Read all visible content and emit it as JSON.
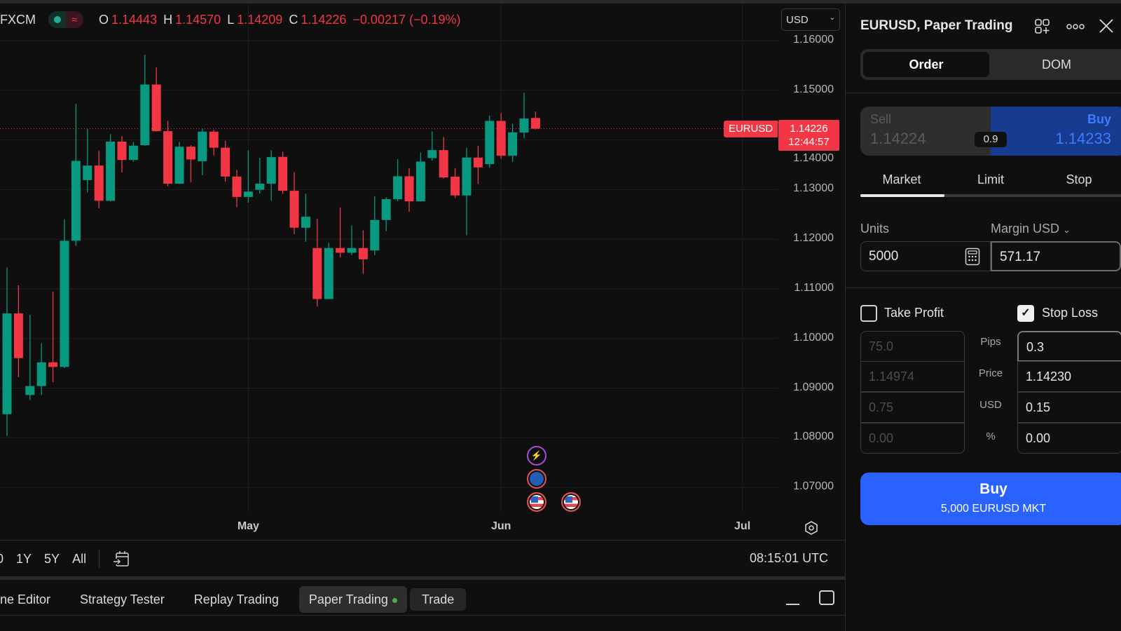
{
  "legend": {
    "symbol": "FXCM",
    "open_label": "O",
    "open": "1.14443",
    "high_label": "H",
    "high": "1.14570",
    "low_label": "L",
    "low": "1.14209",
    "close_label": "C",
    "close": "1.14226",
    "change": "−0.00217 (−0.19%)"
  },
  "currency_select": "USD",
  "price_tag": {
    "symbol": "EURUSD",
    "price": "1.14226",
    "countdown": "12:44:57"
  },
  "colors": {
    "up": "#089981",
    "down": "#f23645",
    "accent": "#2962ff",
    "buy_blue": "#3d7bff"
  },
  "chart_data": {
    "type": "candlestick",
    "ylim": [
      1.065,
      1.168
    ],
    "y_ticks": [
      "1.16000",
      "1.15000",
      "1.14000",
      "1.13000",
      "1.12000",
      "1.11000",
      "1.10000",
      "1.09000",
      "1.08000",
      "1.07000"
    ],
    "x_ticks": [
      {
        "label": "May",
        "at_candle": 21
      },
      {
        "label": "Jun",
        "at_candle": 43
      },
      {
        "label": "Jul",
        "at_candle": 64
      }
    ],
    "last_price": 1.14226,
    "candles": [
      [
        1.08476,
        1.1143,
        1.0804,
        1.10505
      ],
      [
        1.10505,
        1.1107,
        1.09221,
        1.09606
      ],
      [
        1.08862,
        1.10479,
        1.08759,
        1.09042
      ],
      [
        1.09042,
        1.09904,
        1.08862,
        1.09519
      ],
      [
        1.09519,
        1.10942,
        1.09119,
        1.09427
      ],
      [
        1.09427,
        1.12405,
        1.094,
        1.11969
      ],
      [
        1.11969,
        1.14727,
        1.11866,
        1.13577
      ],
      [
        1.13191,
        1.14219,
        1.12945,
        1.13484
      ],
      [
        1.13484,
        1.13777,
        1.12626,
        1.12775
      ],
      [
        1.12775,
        1.14116,
        1.1276,
        1.13967
      ],
      [
        1.13967,
        1.14075,
        1.13345,
        1.13597
      ],
      [
        1.13597,
        1.13957,
        1.13561,
        1.13885
      ],
      [
        1.13895,
        1.15718,
        1.1388,
        1.15117
      ],
      [
        1.15117,
        1.15461,
        1.1417,
        1.14177
      ],
      [
        1.14177,
        1.14383,
        1.13068,
        1.13119
      ],
      [
        1.13119,
        1.13962,
        1.1311,
        1.13864
      ],
      [
        1.13864,
        1.13895,
        1.1315,
        1.13607
      ],
      [
        1.13571,
        1.14229,
        1.13289,
        1.14167
      ],
      [
        1.14167,
        1.14203,
        1.13689,
        1.13844
      ],
      [
        1.13844,
        1.13982,
        1.13161,
        1.13263
      ],
      [
        1.13263,
        1.13397,
        1.12647,
        1.12852
      ],
      [
        1.12852,
        1.13792,
        1.12739,
        1.1296
      ],
      [
        1.12996,
        1.13638,
        1.12919,
        1.13119
      ],
      [
        1.13119,
        1.13792,
        1.1278,
        1.13654
      ],
      [
        1.13659,
        1.13762,
        1.12915,
        1.12976
      ],
      [
        1.12976,
        1.13353,
        1.121,
        1.12232
      ],
      [
        1.12232,
        1.12915,
        1.1195,
        1.12453
      ],
      [
        1.11822,
        1.12411,
        1.10646,
        1.10796
      ],
      [
        1.10796,
        1.11926,
        1.1079,
        1.11822
      ],
      [
        1.11822,
        1.12642,
        1.11634,
        1.11728
      ],
      [
        1.11728,
        1.12279,
        1.11681,
        1.11822
      ],
      [
        1.11822,
        1.12176,
        1.11305,
        1.11596
      ],
      [
        1.11775,
        1.12868,
        1.11681,
        1.12387
      ],
      [
        1.12387,
        1.12844,
        1.12162,
        1.12807
      ],
      [
        1.12807,
        1.13612,
        1.12764,
        1.13268
      ],
      [
        1.13268,
        1.13433,
        1.12548,
        1.12764
      ],
      [
        1.12764,
        1.13748,
        1.1276,
        1.13565
      ],
      [
        1.13635,
        1.14172,
        1.13583,
        1.13795
      ],
      [
        1.13795,
        1.14059,
        1.13221,
        1.13244
      ],
      [
        1.13259,
        1.13433,
        1.1283,
        1.12882
      ],
      [
        1.12882,
        1.13842,
        1.12081,
        1.13645
      ],
      [
        1.13645,
        1.1388,
        1.13113,
        1.13447
      ],
      [
        1.13513,
        1.14492,
        1.13442,
        1.14384
      ],
      [
        1.14384,
        1.14539,
        1.13621,
        1.13682
      ],
      [
        1.13682,
        1.14327,
        1.1356,
        1.14153
      ],
      [
        1.14148,
        1.14949,
        1.14035,
        1.14431
      ],
      [
        1.14443,
        1.1457,
        1.14209,
        1.14226
      ]
    ]
  },
  "toolbar": {
    "ranges": [
      "0",
      "1Y",
      "5Y",
      "All"
    ],
    "time": "08:15:01 UTC"
  },
  "bottom_tabs": [
    "ne Editor",
    "Strategy Tester",
    "Replay Trading",
    "Paper Trading",
    "Trade"
  ],
  "panel": {
    "title": "EURUSD, Paper Trading",
    "seg": {
      "order": "Order",
      "dom": "DOM"
    },
    "sell_label": "Sell",
    "sell_price": "1.14224",
    "buy_label": "Buy",
    "buy_price": "1.14233",
    "spread": "0.9",
    "order_types": [
      "Market",
      "Limit",
      "Stop"
    ],
    "units_label": "Units",
    "margin_label": "Margin USD",
    "units_value": "5000",
    "margin_value": "571.17",
    "take_profit": {
      "label": "Take Profit",
      "checked": false,
      "values": [
        "75.0",
        "1.14974",
        "0.75",
        "0.00"
      ]
    },
    "stop_loss": {
      "label": "Stop Loss",
      "checked": true,
      "values": [
        "0.3",
        "1.14230",
        "0.15",
        "0.00"
      ]
    },
    "row_labels": [
      "Pips",
      "Price",
      "USD",
      "%"
    ],
    "buy_button": {
      "label": "Buy",
      "sub": "5,000 EURUSD MKT"
    }
  }
}
